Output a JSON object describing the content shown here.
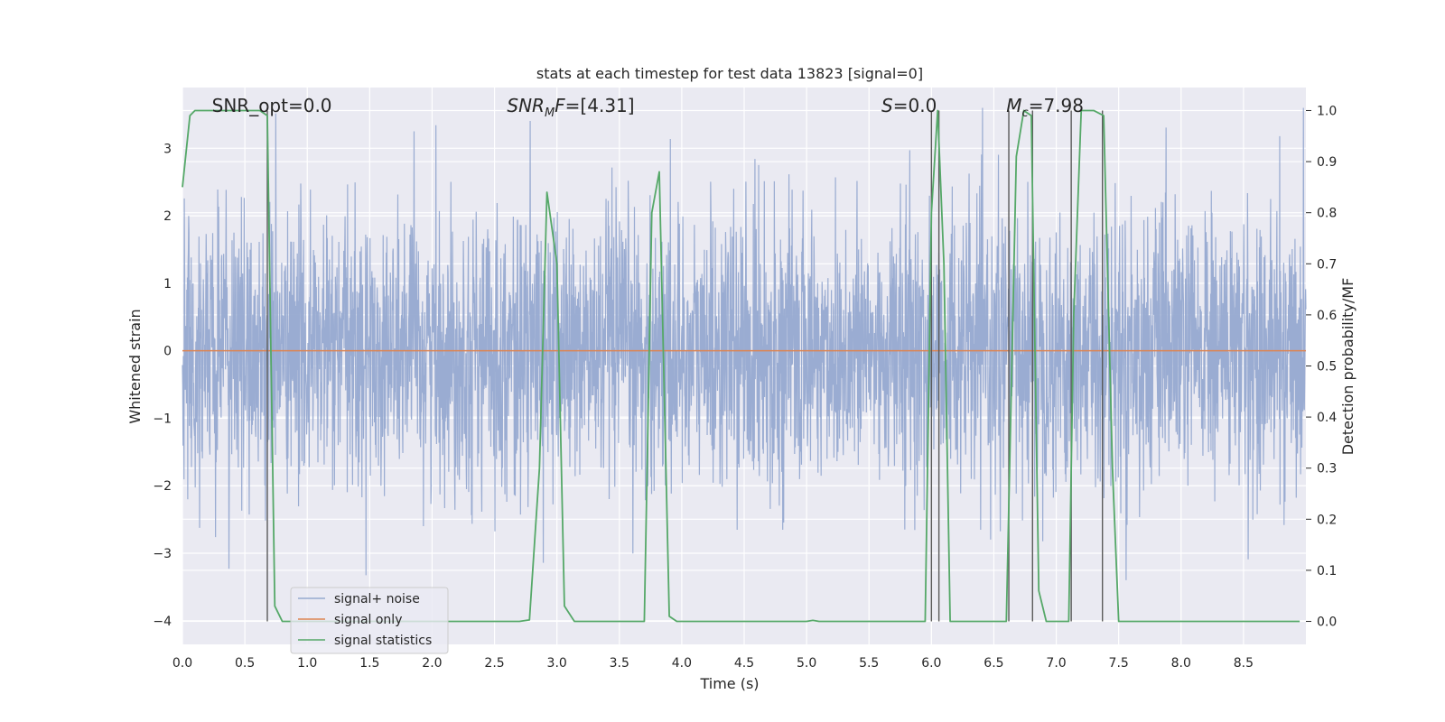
{
  "chart_data": {
    "type": "line",
    "title": "stats at each timestep for test data 13823 [signal=0]",
    "xlabel": "Time (s)",
    "ylabel_left": "Whitened strain",
    "ylabel_right": "Detection probability/MF",
    "xlim": [
      0.0,
      9.0
    ],
    "ylim_left": [
      -4.35,
      3.9
    ],
    "ylim_right": [
      -0.045,
      1.045
    ],
    "xticks": [
      "0.0",
      "0.5",
      "1.0",
      "1.5",
      "2.0",
      "2.5",
      "3.0",
      "3.5",
      "4.0",
      "4.5",
      "5.0",
      "5.5",
      "6.0",
      "6.5",
      "7.0",
      "7.5",
      "8.0",
      "8.5"
    ],
    "xtick_values": [
      0,
      0.5,
      1,
      1.5,
      2,
      2.5,
      3,
      3.5,
      4,
      4.5,
      5,
      5.5,
      6,
      6.5,
      7,
      7.5,
      8,
      8.5
    ],
    "yticks_left": [
      "3",
      "2",
      "1",
      "0",
      "−1",
      "−2",
      "−3",
      "−4"
    ],
    "ytick_values_left": [
      3,
      2,
      1,
      0,
      -1,
      -2,
      -3,
      -4
    ],
    "yticks_right": [
      "1.0",
      "0.9",
      "0.8",
      "0.7",
      "0.6",
      "0.5",
      "0.4",
      "0.3",
      "0.2",
      "0.1",
      "0.0"
    ],
    "ytick_values_right": [
      1.0,
      0.9,
      0.8,
      0.7,
      0.6,
      0.5,
      0.4,
      0.3,
      0.2,
      0.1,
      0.0
    ],
    "grid": true,
    "legend_position": "lower-left",
    "annotations": [
      {
        "text": "SNR_opt=0.0",
        "x": 0.2
      },
      {
        "text": "SNR_MF=[4.31]",
        "x": 2.6,
        "base": "SNR",
        "sub": "M",
        "tail": "F=[4.31]"
      },
      {
        "text": "S=0.0",
        "x": 5.6,
        "base": "S",
        "sub": "",
        "tail": "=0.0"
      },
      {
        "text": "M_c=7.98",
        "x": 6.6,
        "base": "M",
        "sub": "c",
        "tail": "=7.98"
      }
    ],
    "series": [
      {
        "name": "signal+ noise",
        "color": "#96a9d0",
        "kind": "noise",
        "std": 1.0,
        "max": 3.6,
        "min": -3.6
      },
      {
        "name": "signal only",
        "color": "#dd8452",
        "kind": "constant",
        "value": 0.0
      },
      {
        "name": "signal statistics",
        "color": "#55a868",
        "axis": "right",
        "x": [
          0.0,
          0.06,
          0.1,
          0.3,
          0.5,
          0.62,
          0.68,
          0.74,
          0.8,
          0.9,
          1.2,
          1.5,
          2.0,
          2.5,
          2.7,
          2.78,
          2.86,
          2.92,
          3.0,
          3.06,
          3.14,
          3.3,
          3.5,
          3.7,
          3.76,
          3.82,
          3.9,
          3.96,
          4.1,
          4.5,
          5.0,
          5.05,
          5.1,
          5.5,
          5.95,
          6.0,
          6.05,
          6.1,
          6.15,
          6.2,
          6.3,
          6.6,
          6.68,
          6.74,
          6.8,
          6.86,
          6.92,
          7.0,
          7.1,
          7.14,
          7.2,
          7.3,
          7.38,
          7.45,
          7.5,
          7.8,
          8.2,
          8.5,
          8.95
        ],
        "y": [
          0.85,
          0.99,
          1.0,
          1.0,
          1.0,
          1.0,
          0.99,
          0.03,
          0.0,
          0.0,
          0.0,
          0.0,
          0.0,
          0.0,
          0.0,
          0.003,
          0.3,
          0.84,
          0.7,
          0.03,
          0.0,
          0.0,
          0.0,
          0.0,
          0.8,
          0.88,
          0.01,
          0.0,
          0.0,
          0.0,
          0.0,
          0.002,
          0.0,
          0.0,
          0.0,
          0.8,
          1.0,
          0.7,
          0.0,
          0.0,
          0.0,
          0.0,
          0.91,
          1.0,
          0.99,
          0.06,
          0.0,
          0.0,
          0.0,
          0.6,
          1.0,
          1.0,
          0.99,
          0.3,
          0.0,
          0.0,
          0.0,
          0.0,
          0.0
        ]
      },
      {
        "name": "",
        "color": "#5a5a5a",
        "kind": "vlines",
        "axis": "right",
        "bottom": 0.0,
        "top": 1.0,
        "x": [
          0.68,
          6.0,
          6.06,
          6.62,
          6.81,
          7.12,
          7.37
        ]
      }
    ]
  }
}
